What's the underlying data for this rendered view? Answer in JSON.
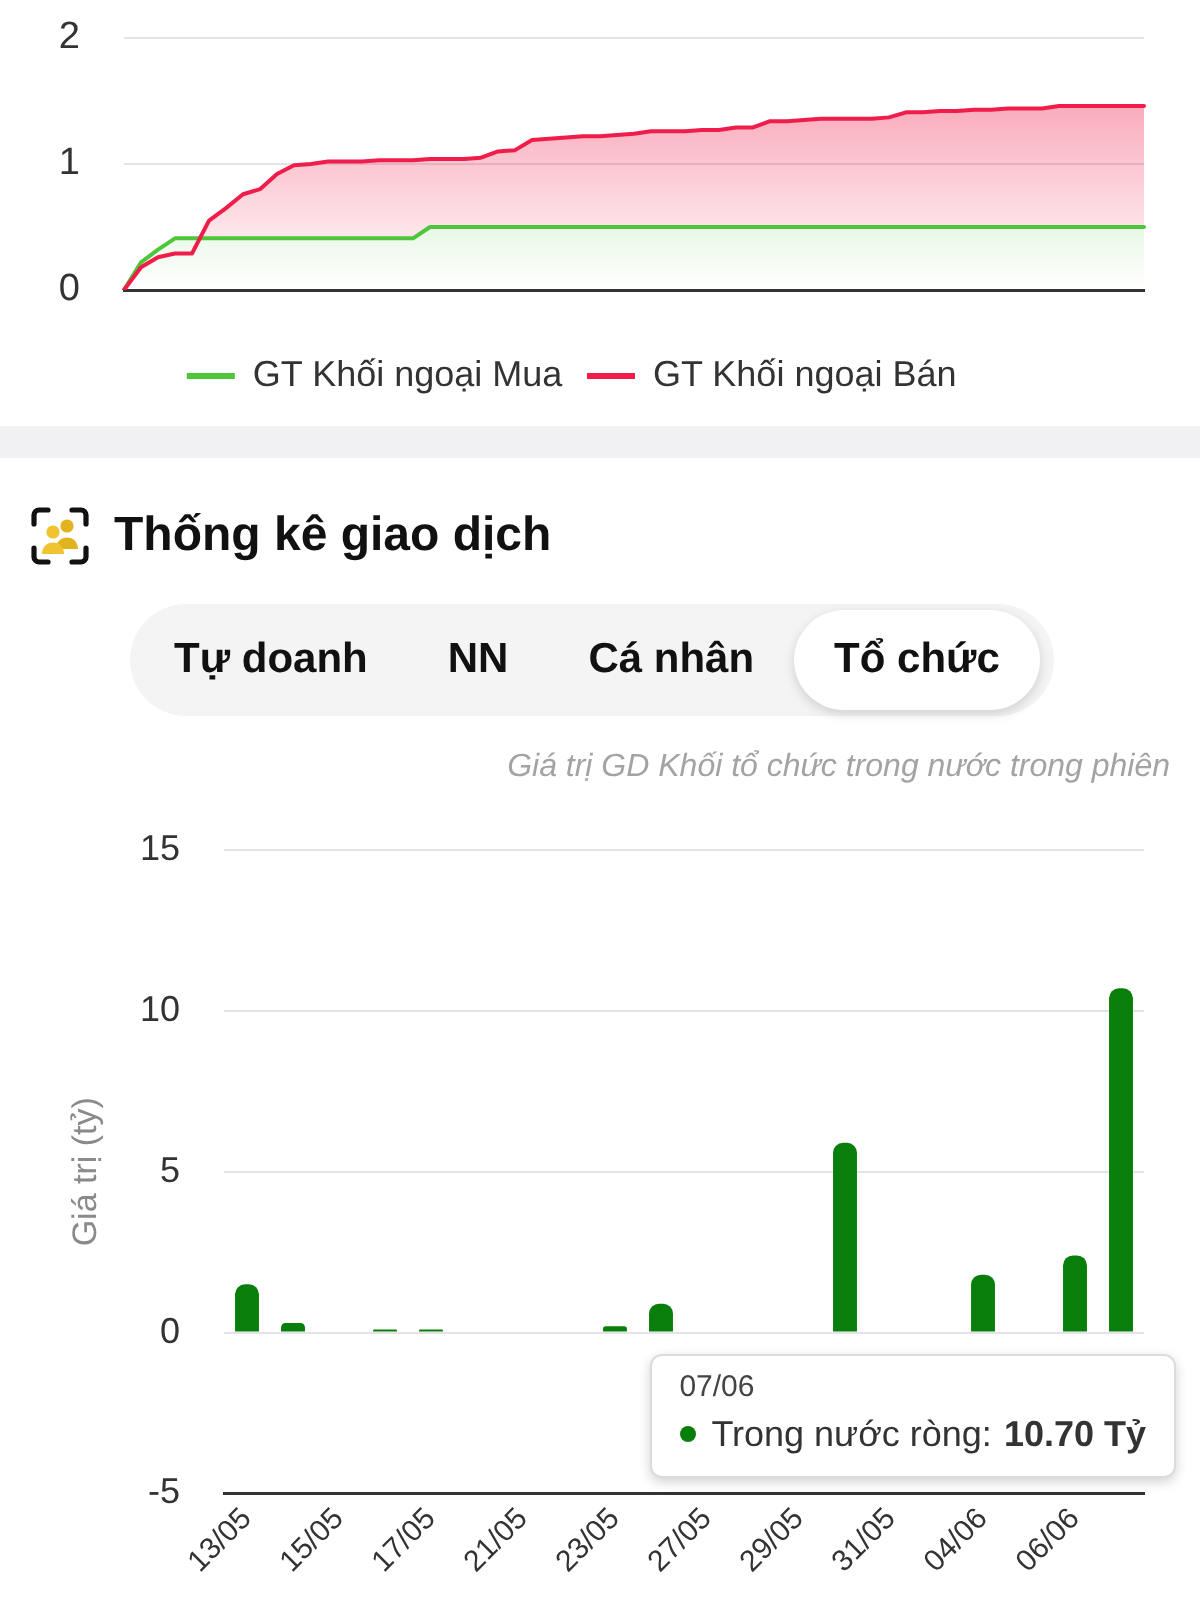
{
  "chart_data": [
    {
      "type": "area",
      "categories": [
        null,
        null,
        null,
        null,
        null,
        null,
        null,
        null,
        null,
        null,
        null,
        null,
        null,
        null,
        null,
        null,
        null,
        null,
        null,
        null,
        null,
        null,
        null,
        null,
        null,
        null,
        null,
        null,
        null,
        null,
        null,
        null,
        null,
        null,
        null,
        null,
        null,
        null,
        null,
        null,
        null,
        null,
        null,
        null,
        null,
        null,
        null,
        null,
        null,
        null,
        null,
        null,
        null,
        null,
        null,
        null,
        null,
        null,
        null,
        null,
        null
      ],
      "series": [
        {
          "name": "GT Khối ngoại Mua",
          "color": "#4fc63a",
          "values": [
            0,
            0.22,
            0.32,
            0.41,
            0.41,
            0.41,
            0.41,
            0.41,
            0.41,
            0.41,
            0.41,
            0.41,
            0.41,
            0.41,
            0.41,
            0.41,
            0.41,
            0.41,
            0.5,
            0.5,
            0.5,
            0.5,
            0.5,
            0.5,
            0.5,
            0.5,
            0.5,
            0.5,
            0.5,
            0.5,
            0.5,
            0.5,
            0.5,
            0.5,
            0.5,
            0.5,
            0.5,
            0.5,
            0.5,
            0.5,
            0.5,
            0.5,
            0.5,
            0.5,
            0.5,
            0.5,
            0.5,
            0.5,
            0.5,
            0.5,
            0.5,
            0.5,
            0.5,
            0.5,
            0.5,
            0.5,
            0.5,
            0.5,
            0.5,
            0.5,
            0.5
          ]
        },
        {
          "name": "GT Khối ngoại Bán",
          "color": "#f01d4b",
          "values": [
            0,
            0.18,
            0.26,
            0.29,
            0.29,
            0.55,
            0.65,
            0.76,
            0.8,
            0.92,
            0.99,
            1.0,
            1.02,
            1.02,
            1.02,
            1.03,
            1.03,
            1.03,
            1.04,
            1.04,
            1.04,
            1.05,
            1.1,
            1.11,
            1.19,
            1.2,
            1.21,
            1.22,
            1.22,
            1.23,
            1.24,
            1.26,
            1.26,
            1.26,
            1.27,
            1.27,
            1.29,
            1.29,
            1.34,
            1.34,
            1.35,
            1.36,
            1.36,
            1.36,
            1.36,
            1.37,
            1.41,
            1.41,
            1.42,
            1.42,
            1.43,
            1.43,
            1.44,
            1.44,
            1.44,
            1.46,
            1.46,
            1.46,
            1.46,
            1.46,
            1.46
          ]
        }
      ],
      "ylim": [
        0,
        2
      ],
      "yticks": [
        0,
        1,
        2
      ],
      "grid": "y",
      "legend": "bottom",
      "tick_labels": "y"
    },
    {
      "type": "bar",
      "title": "Thống kê giao dịch",
      "subtitle": "Giá trị GD Khối tổ chức trong nước trong phiên",
      "ylabel": "Giá trị (tỷ)",
      "categories": [
        "13/05",
        null,
        "15/05",
        null,
        "17/05",
        null,
        "21/05",
        null,
        "23/05",
        null,
        "27/05",
        null,
        "29/05",
        null,
        "31/05",
        null,
        "04/06",
        null,
        "06/06",
        null
      ],
      "series": [
        {
          "name": "Trong nước ròng:",
          "color": "#0a7e0a",
          "values": [
            1.5,
            0.3,
            0,
            0.1,
            0.1,
            0,
            0,
            0,
            0.2,
            0.9,
            null,
            null,
            null,
            5.9,
            null,
            null,
            1.8,
            null,
            2.4,
            10.7
          ]
        }
      ],
      "ylim": [
        -5,
        15
      ],
      "yticks": [
        -5,
        0,
        5,
        10,
        15
      ],
      "grid": "y",
      "legend": "bottom right",
      "annotations": [
        "Tự doanh",
        "NN",
        "Cá nhân",
        "Tổ chức",
        "07/06",
        "10.70 Tỷ"
      ]
    }
  ]
}
